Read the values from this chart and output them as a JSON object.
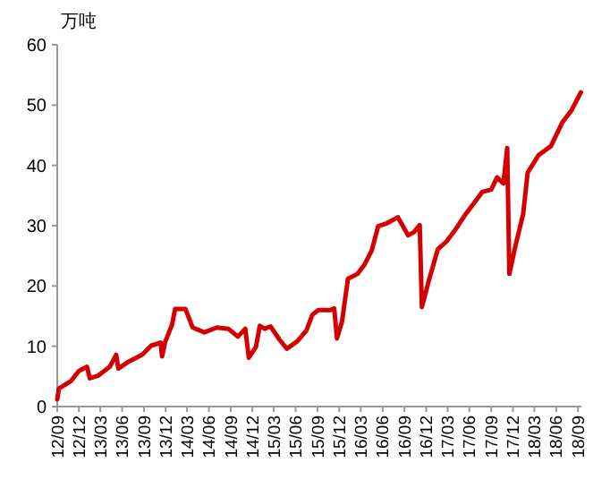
{
  "chart_data": {
    "type": "line",
    "ylabel": "万吨",
    "xlim": [
      "2012-09-01",
      "2018-09-15"
    ],
    "ylim": [
      0,
      60
    ],
    "yticks": [
      0,
      10,
      20,
      30,
      40,
      50,
      60
    ],
    "xticks": [
      {
        "value": "2012-09",
        "label": "12/09"
      },
      {
        "value": "2012-12",
        "label": "12/12"
      },
      {
        "value": "2013-03",
        "label": "13/03"
      },
      {
        "value": "2013-06",
        "label": "13/06"
      },
      {
        "value": "2013-09",
        "label": "13/09"
      },
      {
        "value": "2013-12",
        "label": "13/12"
      },
      {
        "value": "2014-03",
        "label": "14/03"
      },
      {
        "value": "2014-06",
        "label": "14/06"
      },
      {
        "value": "2014-09",
        "label": "14/09"
      },
      {
        "value": "2014-12",
        "label": "14/12"
      },
      {
        "value": "2015-03",
        "label": "15/03"
      },
      {
        "value": "2015-06",
        "label": "15/06"
      },
      {
        "value": "2015-09",
        "label": "15/09"
      },
      {
        "value": "2015-12",
        "label": "15/12"
      },
      {
        "value": "2016-03",
        "label": "16/03"
      },
      {
        "value": "2016-06",
        "label": "16/06"
      },
      {
        "value": "2016-09",
        "label": "16/09"
      },
      {
        "value": "2016-12",
        "label": "16/12"
      },
      {
        "value": "2017-03",
        "label": "17/03"
      },
      {
        "value": "2017-06",
        "label": "17/06"
      },
      {
        "value": "2017-09",
        "label": "17/09"
      },
      {
        "value": "2017-12",
        "label": "17/12"
      },
      {
        "value": "2018-03",
        "label": "18/03"
      },
      {
        "value": "2018-06",
        "label": "18/06"
      },
      {
        "value": "2018-09",
        "label": "18/09"
      }
    ],
    "grid": false,
    "marker": "none",
    "line_style": "solid",
    "x": [
      "2012-09-01",
      "2012-09-08",
      "2012-10-28",
      "2012-12-01",
      "2013-01-04",
      "2013-01-16",
      "2013-02-19",
      "2013-04-10",
      "2013-05-07",
      "2013-05-16",
      "2013-06-22",
      "2013-08-25",
      "2013-10-01",
      "2013-11-10",
      "2013-11-16",
      "2013-11-28",
      "2013-12-28",
      "2014-01-10",
      "2014-02-22",
      "2014-03-25",
      "2014-05-13",
      "2014-07-04",
      "2014-08-22",
      "2014-10-01",
      "2014-11-01",
      "2014-11-16",
      "2014-12-16",
      "2015-01-01",
      "2015-01-22",
      "2015-02-15",
      "2015-03-25",
      "2015-04-25",
      "2015-06-07",
      "2015-07-16",
      "2015-08-10",
      "2015-09-04",
      "2015-10-25",
      "2015-11-10",
      "2015-11-22",
      "2015-12-13",
      "2016-01-07",
      "2016-02-16",
      "2016-03-16",
      "2016-04-16",
      "2016-05-13",
      "2016-06-19",
      "2016-08-04",
      "2016-09-16",
      "2016-10-10",
      "2016-11-04",
      "2016-11-13",
      "2016-12-13",
      "2017-01-19",
      "2017-02-25",
      "2017-04-04",
      "2017-05-16",
      "2017-07-01",
      "2017-07-25",
      "2017-09-01",
      "2017-09-25",
      "2017-10-22",
      "2017-11-07",
      "2017-11-16",
      "2017-12-10",
      "2018-01-13",
      "2018-02-01",
      "2018-03-19",
      "2018-05-10",
      "2018-06-28",
      "2018-08-04",
      "2018-09-13"
    ],
    "series": [
      {
        "color": "#d40000",
        "values": [
          1.2,
          3.0,
          4.2,
          5.9,
          6.6,
          4.7,
          5.1,
          6.6,
          8.6,
          6.3,
          7.3,
          8.6,
          10.1,
          10.6,
          8.3,
          10.6,
          13.6,
          16.2,
          16.2,
          13.1,
          12.3,
          13.1,
          12.9,
          11.6,
          12.9,
          8.1,
          9.9,
          13.4,
          12.9,
          13.3,
          11.1,
          9.6,
          10.8,
          12.6,
          15.2,
          16.0,
          16.0,
          16.3,
          11.3,
          14.1,
          21.2,
          22.0,
          23.5,
          25.9,
          29.9,
          30.4,
          31.4,
          28.4,
          28.9,
          30.1,
          16.5,
          21.0,
          26.1,
          27.4,
          29.4,
          31.9,
          34.3,
          35.6,
          36.0,
          38.0,
          37.0,
          42.9,
          22.0,
          26.4,
          31.9,
          38.8,
          41.7,
          43.2,
          47.2,
          49.1,
          52.1
        ]
      }
    ]
  }
}
